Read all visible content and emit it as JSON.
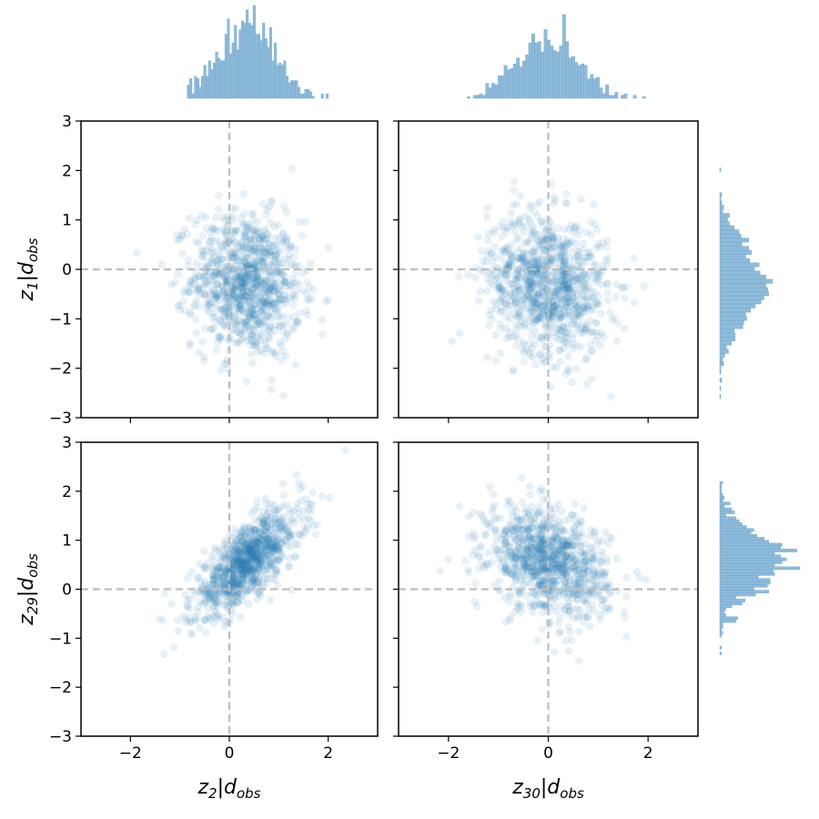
{
  "chart_data": {
    "type": "scatter",
    "figure_layout": "2x2 corner plot with marginal histograms",
    "colors": {
      "points": "#1f77b4",
      "hist_fill": "#8fbbd9",
      "hist_edge": "#6aa3cc",
      "reference_lines": "#bdbdbd"
    },
    "point_alpha": 0.1,
    "reference_lines": {
      "x": 0,
      "y": 0,
      "style": "dashed",
      "color": "#bdbdbd"
    },
    "xlim": [
      -3,
      3
    ],
    "ylim": [
      -3,
      3
    ],
    "x_ticks": [
      "−2",
      "0",
      "2"
    ],
    "y_ticks": [
      "−3",
      "−2",
      "−1",
      "0",
      "1",
      "2",
      "3"
    ],
    "x_variables": [
      {
        "name": "z",
        "sub": "2",
        "cond": "|",
        "d": "d",
        "dsub": "obs",
        "mean": 0.35,
        "sd": 0.55
      },
      {
        "name": "z",
        "sub": "30",
        "cond": "|",
        "d": "d",
        "dsub": "obs",
        "mean": 0.0,
        "sd": 0.6
      }
    ],
    "y_variables": [
      {
        "name": "z",
        "sub": "1",
        "cond": "|",
        "d": "d",
        "dsub": "obs",
        "mean": -0.3,
        "sd": 0.72
      },
      {
        "name": "z",
        "sub": "29",
        "cond": "|",
        "d": "d",
        "dsub": "obs",
        "mean": 0.55,
        "sd": 0.55
      }
    ],
    "panels": [
      {
        "row": 0,
        "col": 0,
        "x": "z_2|d_obs",
        "y": "z_1|d_obs",
        "correlation": -0.1
      },
      {
        "row": 0,
        "col": 1,
        "x": "z_30|d_obs",
        "y": "z_1|d_obs",
        "correlation": -0.15
      },
      {
        "row": 1,
        "col": 0,
        "x": "z_2|d_obs",
        "y": "z_29|d_obs",
        "correlation": 0.75
      },
      {
        "row": 1,
        "col": 1,
        "x": "z_30|d_obs",
        "y": "z_29|d_obs",
        "correlation": -0.3
      }
    ],
    "n_samples": 1000,
    "histograms": [
      {
        "variable": "z_2|d_obs",
        "placement": "top-left",
        "range": [
          -0.85,
          2.0
        ]
      },
      {
        "variable": "z_30|d_obs",
        "placement": "top-right",
        "range": [
          -1.75,
          1.95
        ]
      },
      {
        "variable": "z_1|d_obs",
        "placement": "right-top",
        "range": [
          -2.95,
          2.05
        ]
      },
      {
        "variable": "z_29|d_obs",
        "placement": "right-bottom",
        "range": [
          -1.4,
          2.2
        ]
      }
    ],
    "grid": false,
    "legend": "none"
  }
}
